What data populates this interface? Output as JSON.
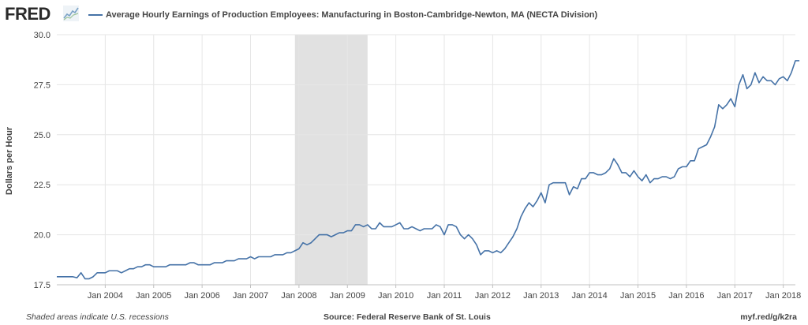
{
  "header": {
    "logo_text": "FRED",
    "logo_icon": "fred-line-graph-icon",
    "series_title": "Average Hourly Earnings of Production Employees: Manufacturing in Boston-Cambridge-Newton, MA (NECTA Division)"
  },
  "footer": {
    "recession_note": "Shaded areas indicate U.S. recessions",
    "source": "Source: Federal Reserve Bank of St. Louis",
    "short_url": "myf.red/g/k2ra"
  },
  "colors": {
    "series": "#4572a7",
    "recession_band": "#e1e1e1",
    "grid": "#e6e6e6",
    "axis_text": "#444444"
  },
  "chart_data": {
    "type": "line",
    "title": "Average Hourly Earnings of Production Employees: Manufacturing in Boston-Cambridge-Newton, MA (NECTA Division)",
    "xlabel": "",
    "ylabel": "Dollars per Hour",
    "ylim": [
      17.5,
      30.0
    ],
    "yticks": [
      "17.5",
      "20.0",
      "22.5",
      "25.0",
      "27.5",
      "30.0"
    ],
    "xlim": [
      "2003-01",
      "2018-04"
    ],
    "xticks": [
      "Jan 2004",
      "Jan 2005",
      "Jan 2006",
      "Jan 2007",
      "Jan 2008",
      "Jan 2009",
      "Jan 2010",
      "Jan 2011",
      "Jan 2012",
      "Jan 2013",
      "Jan 2014",
      "Jan 2015",
      "Jan 2016",
      "Jan 2017",
      "Jan 2018"
    ],
    "grid": true,
    "legend_position": "top-left",
    "recessions": [
      {
        "start": "2007-12",
        "end": "2009-06"
      }
    ],
    "series": [
      {
        "name": "Average Hourly Earnings of Production Employees: Manufacturing in Boston-Cambridge-Newton, MA (NECTA Division)",
        "frequency": "monthly",
        "start": "2003-01",
        "values": [
          17.9,
          17.9,
          17.9,
          17.9,
          17.9,
          17.85,
          18.1,
          17.8,
          17.8,
          17.9,
          18.1,
          18.1,
          18.1,
          18.2,
          18.2,
          18.2,
          18.1,
          18.2,
          18.3,
          18.3,
          18.4,
          18.4,
          18.5,
          18.5,
          18.4,
          18.4,
          18.4,
          18.4,
          18.5,
          18.5,
          18.5,
          18.5,
          18.5,
          18.6,
          18.6,
          18.5,
          18.5,
          18.5,
          18.5,
          18.6,
          18.6,
          18.6,
          18.7,
          18.7,
          18.7,
          18.8,
          18.8,
          18.8,
          18.9,
          18.8,
          18.9,
          18.9,
          18.9,
          18.9,
          19.0,
          19.0,
          19.0,
          19.1,
          19.1,
          19.2,
          19.3,
          19.6,
          19.5,
          19.6,
          19.8,
          20.0,
          20.0,
          20.0,
          19.9,
          20.0,
          20.1,
          20.1,
          20.2,
          20.2,
          20.5,
          20.5,
          20.4,
          20.5,
          20.3,
          20.3,
          20.6,
          20.4,
          20.4,
          20.4,
          20.5,
          20.6,
          20.3,
          20.3,
          20.4,
          20.3,
          20.2,
          20.3,
          20.3,
          20.3,
          20.5,
          20.4,
          20.0,
          20.5,
          20.5,
          20.4,
          20.0,
          19.8,
          20.0,
          19.8,
          19.5,
          19.0,
          19.2,
          19.2,
          19.1,
          19.2,
          19.1,
          19.3,
          19.6,
          19.9,
          20.3,
          20.9,
          21.3,
          21.6,
          21.4,
          21.7,
          22.1,
          21.6,
          22.5,
          22.6,
          22.6,
          22.6,
          22.6,
          22.0,
          22.4,
          22.3,
          22.8,
          22.8,
          23.1,
          23.1,
          23.0,
          23.0,
          23.1,
          23.3,
          23.8,
          23.5,
          23.1,
          23.1,
          22.9,
          23.2,
          22.9,
          22.7,
          23.0,
          22.6,
          22.8,
          22.8,
          22.9,
          22.9,
          22.8,
          22.9,
          23.3,
          23.4,
          23.4,
          23.7,
          23.7,
          24.3,
          24.4,
          24.5,
          24.9,
          25.4,
          26.5,
          26.3,
          26.5,
          26.8,
          26.4,
          27.5,
          28.0,
          27.3,
          27.5,
          28.1,
          27.6,
          27.9,
          27.7,
          27.7,
          27.5,
          27.8,
          27.9,
          27.7,
          28.1,
          28.7,
          28.7
        ]
      }
    ]
  }
}
